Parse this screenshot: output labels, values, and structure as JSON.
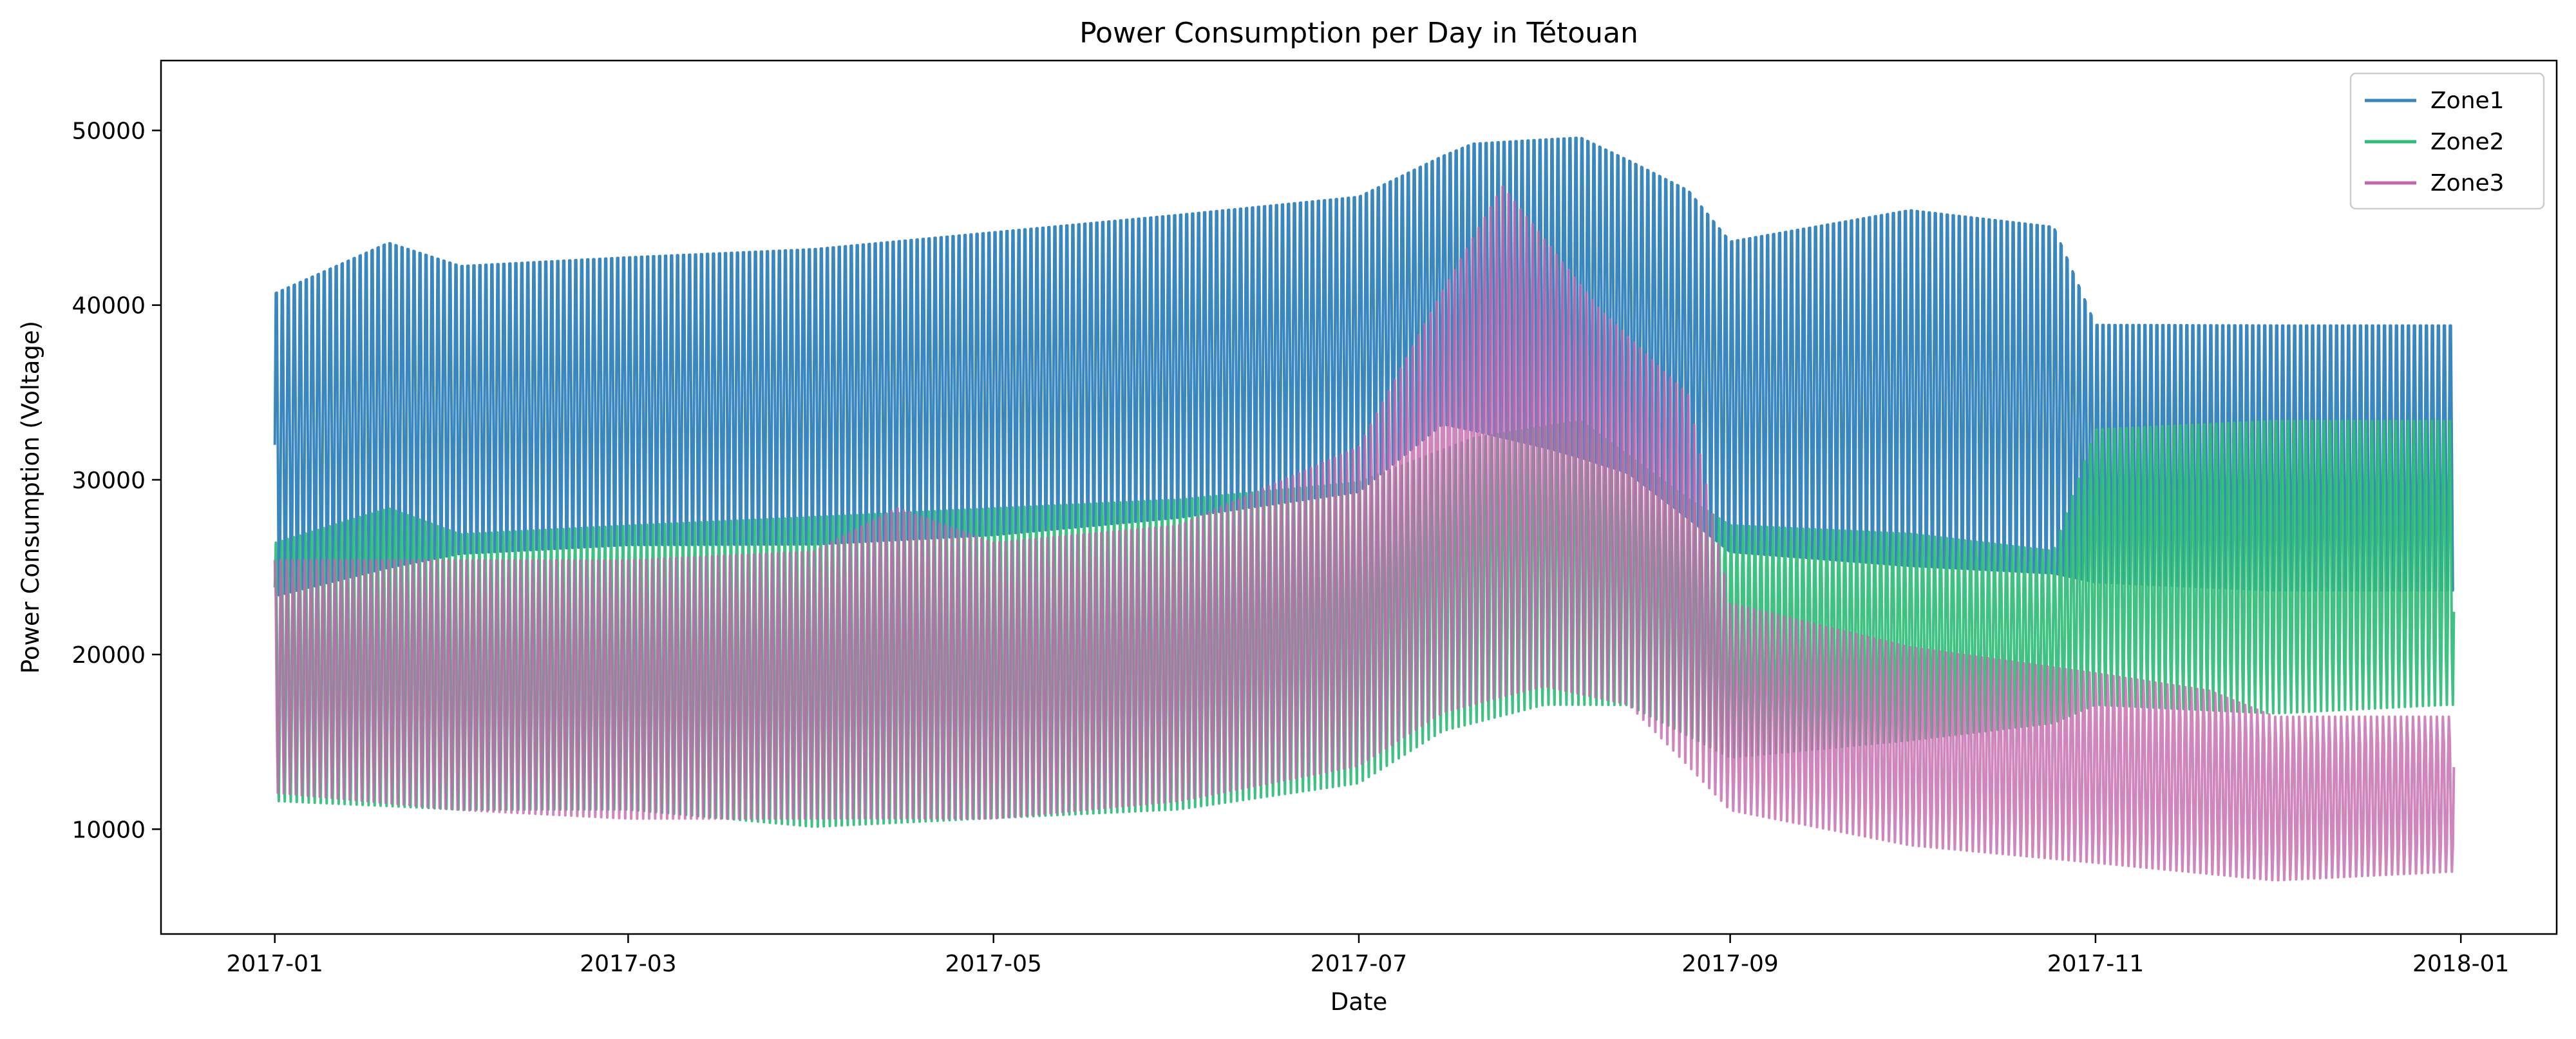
{
  "chart_data": {
    "type": "line",
    "title": "Power Consumption per Day in Tétouan",
    "xlabel": "Date",
    "ylabel": "Power Consumption (Voltage)",
    "xlim": [
      "2016-12-13",
      "2018-01-17"
    ],
    "ylim": [
      4000,
      54000
    ],
    "x_ticks": [
      "2017-01-01",
      "2017-03-01",
      "2017-05-01",
      "2017-07-01",
      "2017-09-01",
      "2017-11-01",
      "2018-01-01"
    ],
    "x_tick_labels": [
      "2017-01",
      "2017-03",
      "2017-05",
      "2017-07",
      "2017-09",
      "2017-11",
      "2018-01"
    ],
    "y_ticks": [
      10000,
      20000,
      30000,
      40000,
      50000
    ],
    "y_tick_labels": [
      "10000",
      "20000",
      "30000",
      "40000",
      "50000"
    ],
    "grid": false,
    "legend_position": "top-right",
    "series": [
      {
        "name": "Zone1",
        "color": "#3a87c0",
        "daily_min": {
          "dates": [
            "2017-01-01",
            "2017-02-01",
            "2017-03-01",
            "2017-04-01",
            "2017-05-01",
            "2017-06-01",
            "2017-07-01",
            "2017-07-15",
            "2017-08-01",
            "2017-08-15",
            "2017-09-01",
            "2017-10-01",
            "2017-11-01",
            "2017-12-01",
            "2017-12-30"
          ],
          "values": [
            22000,
            24500,
            25000,
            25000,
            25500,
            26500,
            28000,
            32000,
            30500,
            29000,
            24500,
            23500,
            23000,
            22500,
            22500
          ]
        },
        "daily_max": {
          "dates": [
            "2017-01-01",
            "2017-01-20",
            "2017-02-01",
            "2017-03-01",
            "2017-04-01",
            "2017-05-01",
            "2017-06-01",
            "2017-07-01",
            "2017-07-20",
            "2017-08-07",
            "2017-08-25",
            "2017-09-01",
            "2017-10-01",
            "2017-10-25",
            "2017-11-01",
            "2017-12-01",
            "2017-12-30"
          ],
          "values": [
            42000,
            45000,
            43500,
            44000,
            44500,
            45500,
            46500,
            47500,
            50500,
            51000,
            48000,
            45000,
            47000,
            46000,
            40000,
            40000,
            40000
          ]
        }
      },
      {
        "name": "Zone2",
        "color": "#2fbd76",
        "daily_min": {
          "dates": [
            "2017-01-01",
            "2017-02-01",
            "2017-03-01",
            "2017-04-01",
            "2017-05-01",
            "2017-06-01",
            "2017-07-01",
            "2017-07-15",
            "2017-08-01",
            "2017-08-15",
            "2017-09-01",
            "2017-10-01",
            "2017-10-25",
            "2017-11-01",
            "2017-12-01",
            "2017-12-30"
          ],
          "values": [
            11500,
            11000,
            11000,
            10000,
            10500,
            11000,
            12500,
            15500,
            17000,
            17000,
            14000,
            15000,
            16000,
            17000,
            16500,
            17000
          ]
        },
        "daily_max": {
          "dates": [
            "2017-01-01",
            "2017-01-20",
            "2017-02-01",
            "2017-03-01",
            "2017-04-01",
            "2017-05-01",
            "2017-06-01",
            "2017-07-01",
            "2017-07-20",
            "2017-08-07",
            "2017-08-25",
            "2017-09-01",
            "2017-10-01",
            "2017-10-25",
            "2017-11-01",
            "2017-12-01",
            "2017-12-30"
          ],
          "values": [
            26500,
            28500,
            27000,
            27500,
            28000,
            28500,
            29000,
            30000,
            32500,
            33500,
            29000,
            27500,
            27000,
            26000,
            33000,
            33500,
            33500
          ]
        }
      },
      {
        "name": "Zone3",
        "color": "#c466ad",
        "daily_min": {
          "dates": [
            "2017-01-01",
            "2017-02-01",
            "2017-03-01",
            "2017-04-01",
            "2017-05-01",
            "2017-06-01",
            "2017-07-01",
            "2017-07-15",
            "2017-08-01",
            "2017-08-15",
            "2017-09-01",
            "2017-10-01",
            "2017-11-01",
            "2017-12-01",
            "2017-12-30"
          ],
          "values": [
            12000,
            11000,
            10500,
            10500,
            10500,
            11500,
            13500,
            16500,
            18000,
            17000,
            11000,
            9000,
            8000,
            7000,
            7500
          ]
        },
        "daily_max": {
          "dates": [
            "2017-01-01",
            "2017-02-01",
            "2017-03-01",
            "2017-04-01",
            "2017-04-15",
            "2017-05-01",
            "2017-06-01",
            "2017-07-01",
            "2017-07-15",
            "2017-07-25",
            "2017-08-10",
            "2017-08-25",
            "2017-09-01",
            "2017-10-01",
            "2017-11-01",
            "2017-11-20",
            "2017-12-01",
            "2017-12-30"
          ],
          "values": [
            25500,
            25500,
            25500,
            26000,
            28500,
            26500,
            27500,
            32000,
            41000,
            47000,
            40000,
            35000,
            23000,
            20500,
            19000,
            18000,
            16500,
            16500
          ]
        }
      }
    ]
  }
}
